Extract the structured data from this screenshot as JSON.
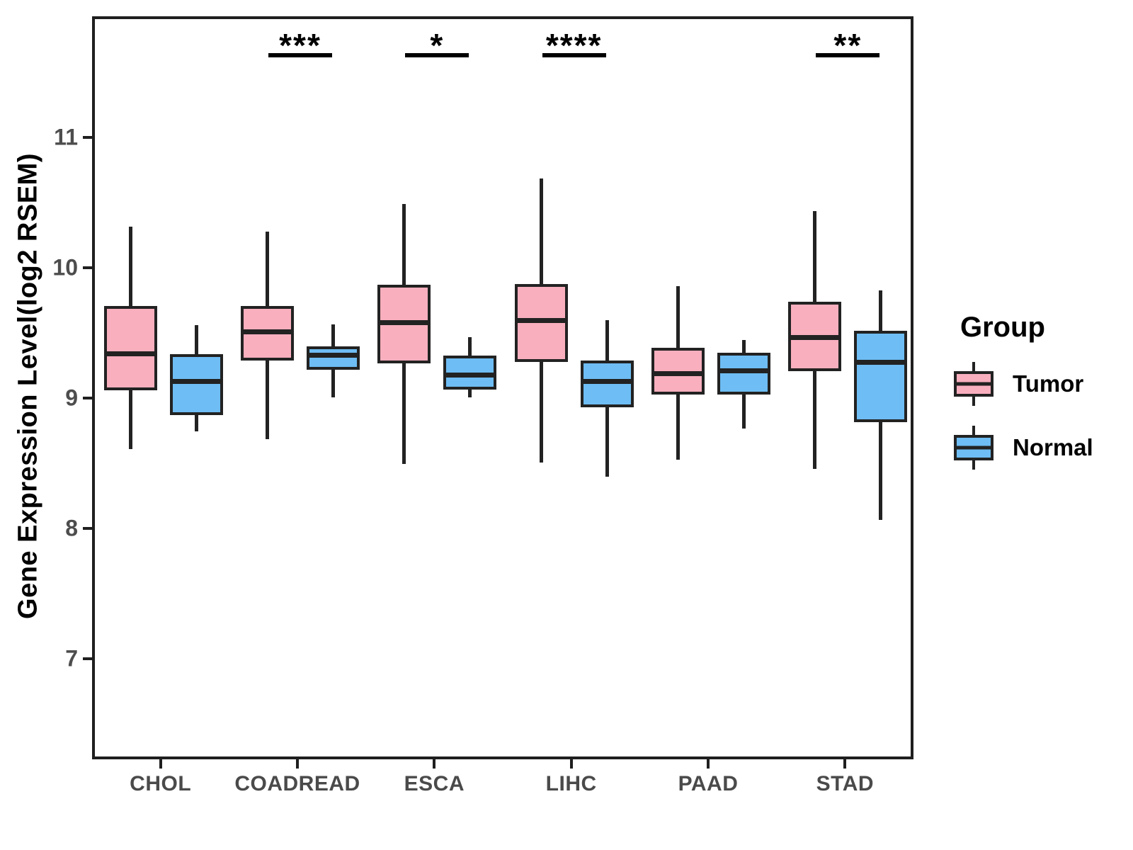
{
  "colors": {
    "tumor_fill": "#F9AFBE",
    "normal_fill": "#6EBDF4",
    "box_line": "#222222",
    "panel_border": "#1f1f1f",
    "axis_text": "#4d4d4d",
    "title_text": "#000000"
  },
  "chart_data": {
    "type": "boxplot",
    "title": "",
    "xlabel": "",
    "ylabel": "Gene Expression Level(log2 RSEM)",
    "categories": [
      "CHOL",
      "COADREAD",
      "ESCA",
      "LIHC",
      "PAAD",
      "STAD"
    ],
    "groups": [
      {
        "name": "Tumor",
        "fill": "#F9AFBE"
      },
      {
        "name": "Normal",
        "fill": "#6EBDF4"
      }
    ],
    "boxes": {
      "Tumor": [
        {
          "whisker_low": 8.63,
          "q1": 9.08,
          "median": 9.36,
          "q3": 9.73,
          "whisker_high": 10.34
        },
        {
          "whisker_low": 8.71,
          "q1": 9.31,
          "median": 9.53,
          "q3": 9.73,
          "whisker_high": 10.3
        },
        {
          "whisker_low": 8.52,
          "q1": 9.29,
          "median": 9.6,
          "q3": 9.89,
          "whisker_high": 10.51
        },
        {
          "whisker_low": 8.53,
          "q1": 9.3,
          "median": 9.62,
          "q3": 9.9,
          "whisker_high": 10.71
        },
        {
          "whisker_low": 8.55,
          "q1": 9.05,
          "median": 9.21,
          "q3": 9.41,
          "whisker_high": 9.88
        },
        {
          "whisker_low": 8.48,
          "q1": 9.23,
          "median": 9.49,
          "q3": 9.76,
          "whisker_high": 10.46
        }
      ],
      "Normal": [
        {
          "whisker_low": 8.77,
          "q1": 8.89,
          "median": 9.15,
          "q3": 9.36,
          "whisker_high": 9.58
        },
        {
          "whisker_low": 9.03,
          "q1": 9.24,
          "median": 9.35,
          "q3": 9.42,
          "whisker_high": 9.59
        },
        {
          "whisker_low": 9.03,
          "q1": 9.09,
          "median": 9.2,
          "q3": 9.35,
          "whisker_high": 9.49
        },
        {
          "whisker_low": 8.42,
          "q1": 8.95,
          "median": 9.15,
          "q3": 9.31,
          "whisker_high": 9.62
        },
        {
          "whisker_low": 8.79,
          "q1": 9.05,
          "median": 9.23,
          "q3": 9.37,
          "whisker_high": 9.47
        },
        {
          "whisker_low": 8.09,
          "q1": 8.84,
          "median": 9.3,
          "q3": 9.54,
          "whisker_high": 9.85
        }
      ]
    },
    "significance": [
      {
        "category": "COADREAD",
        "label": "***"
      },
      {
        "category": "ESCA",
        "label": "*"
      },
      {
        "category": "LIHC",
        "label": "****"
      },
      {
        "category": "STAD",
        "label": "**"
      }
    ],
    "yticks": [
      7,
      8,
      9,
      10,
      11
    ],
    "ylim": [
      6.23,
      11.93
    ],
    "grid": false,
    "legend": {
      "title": "Group",
      "position": "right"
    }
  }
}
